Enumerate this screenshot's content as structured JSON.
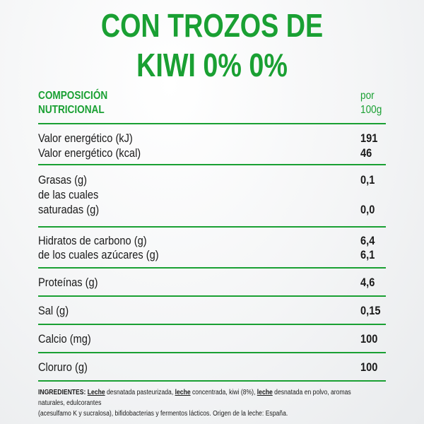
{
  "title": {
    "line1": "CON TROZOS DE",
    "line2": "KIWI 0% 0%"
  },
  "table": {
    "header": {
      "composition_line1": "COMPOSICIÓN",
      "composition_line2": "NUTRICIONAL",
      "per_line1": "por",
      "per_line2": "100g"
    },
    "energy": {
      "kj_label": "Valor energético (kJ)",
      "kj_value": "191",
      "kcal_label": "Valor energético (kcal)",
      "kcal_value": "46"
    },
    "fats": {
      "label": "Grasas (g)",
      "value": "0,1",
      "sat_label_line1": "de las cuales",
      "sat_label_line2": "saturadas (g)",
      "sat_value": "0,0"
    },
    "carbs": {
      "label": "Hidratos de carbono (g)",
      "value": "6,4",
      "sugar_label": "de los cuales azúcares (g)",
      "sugar_value": "6,1"
    },
    "protein": {
      "label": "Proteínas (g)",
      "value": "4,6"
    },
    "salt": {
      "label": "Sal (g)",
      "value": "0,15"
    },
    "calcium": {
      "label": "Calcio (mg)",
      "value": "100"
    },
    "chloride": {
      "label": "Cloruro (g)",
      "value": "100"
    }
  },
  "ingredients": {
    "heading": "INGREDIENTES:",
    "leche1": "Leche",
    "part1": " desnatada pasteurizada, ",
    "leche2": "leche",
    "part2": " concentrada, kiwi (8%), ",
    "leche3": "leche",
    "part3": " desnatada en polvo, aromas naturales, edulcorantes",
    "line2": "(acesulfamo K y sucralosa), bifidobacterias y fermentos lácticos. Origen de la leche: España."
  },
  "colors": {
    "accent_green": "#1aa033",
    "text": "#1a1a1a",
    "background": "#f4f5f6"
  }
}
